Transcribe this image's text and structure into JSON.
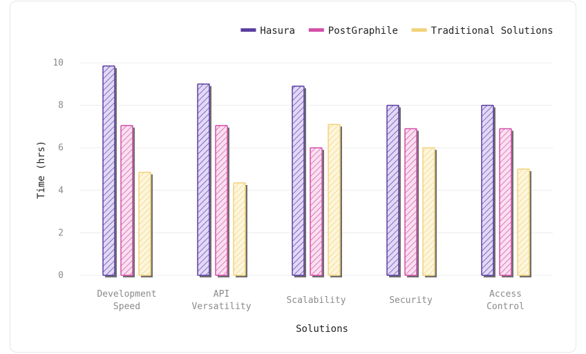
{
  "chart_data": {
    "type": "bar",
    "categories": [
      [
        "Development",
        "Speed"
      ],
      [
        "API",
        "Versatility"
      ],
      [
        "Scalability"
      ],
      [
        "Security"
      ],
      [
        "Access",
        "Control"
      ]
    ],
    "series": [
      {
        "name": "Hasura",
        "values": [
          9.85,
          9.0,
          8.9,
          8.0,
          8.0
        ],
        "color": "#5b3fa0",
        "fill": "#e2d8f8"
      },
      {
        "name": "PostGraphile",
        "values": [
          7.05,
          7.05,
          6.0,
          6.9,
          6.9
        ],
        "color": "#d44fa8",
        "fill": "#fae0f0"
      },
      {
        "name": "Traditional Solutions",
        "values": [
          4.85,
          4.35,
          7.1,
          6.0,
          5.0
        ],
        "color": "#f2d27a",
        "fill": "#fdf6dc"
      }
    ],
    "xlabel": "Solutions",
    "ylabel": "Time (hrs)",
    "ylim": [
      0,
      10
    ],
    "yticks": [
      0,
      2,
      4,
      6,
      8,
      10
    ],
    "grid": true,
    "legend_position": "top-right",
    "pattern": "diagonal-hatch"
  }
}
